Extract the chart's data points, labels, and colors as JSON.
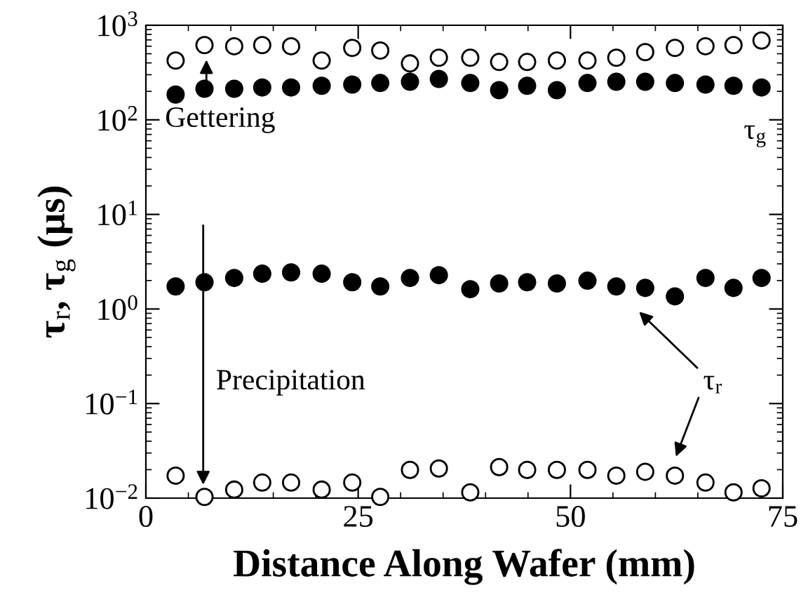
{
  "chart_data": {
    "type": "scatter",
    "xlabel": "Distance Along Wafer (mm)",
    "ylabel": "τ$_{r}$, τ$_{g}$ (μs)",
    "x": [
      3.5,
      6.9,
      10.4,
      13.7,
      17.1,
      20.7,
      24.3,
      27.6,
      31.1,
      34.5,
      38.2,
      41.6,
      44.9,
      48.4,
      52,
      55.4,
      58.8,
      62.3,
      65.9,
      69.2,
      72.5
    ],
    "series": [
      {
        "color": "#ffffff",
        "marker": "circle",
        "values": [
          424,
          617,
          600,
          617,
          600,
          424,
          577,
          540,
          395,
          454,
          454,
          409,
          409,
          424,
          424,
          454,
          520,
          577,
          600,
          617,
          690
        ]
      },
      {
        "color": "#000000",
        "marker": "circle",
        "values": [
          185,
          213,
          213,
          220,
          220,
          229,
          236,
          245,
          253,
          271,
          245,
          206,
          229,
          206,
          245,
          253,
          253,
          245,
          236,
          229,
          220
        ]
      },
      {
        "color": "#000000",
        "marker": "circle",
        "values": [
          1.73,
          1.92,
          2.13,
          2.36,
          2.44,
          2.36,
          1.92,
          1.73,
          2.13,
          2.28,
          1.62,
          1.86,
          1.92,
          1.86,
          1.99,
          1.73,
          1.67,
          1.36,
          2.13,
          1.67,
          2.13
        ]
      },
      {
        "color": "#ffffff",
        "marker": "circle",
        "values": [
          0.0173,
          0.0103,
          0.0123,
          0.0146,
          0.0146,
          0.0123,
          0.0146,
          0.0103,
          0.0199,
          0.0206,
          0.0115,
          0.0213,
          0.0199,
          0.0199,
          0.0199,
          0.0173,
          0.019,
          0.0173,
          0.0146,
          0.0115,
          0.0127
        ]
      }
    ],
    "xlim": [
      0,
      75
    ],
    "xticks": [
      0,
      25,
      50,
      75
    ],
    "log": true,
    "ylim": [
      0.01,
      1000
    ],
    "yticks": [
      {
        "value": 0.01,
        "label": "10$^{−2}$"
      },
      {
        "value": 0.1,
        "label": "10$^{−1}$"
      },
      {
        "value": 1,
        "label": "10$^{0}$"
      },
      {
        "value": 10,
        "label": "10$^{1}$"
      },
      {
        "value": 100,
        "label": "10$^{2}$"
      },
      {
        "value": 1000,
        "label": "10$^{3}$"
      }
    ],
    "annotations": [
      "Gettering",
      "Precipitation",
      "τ$_{r}$",
      "τ$_{g}$"
    ],
    "grid": false,
    "legend": false
  }
}
